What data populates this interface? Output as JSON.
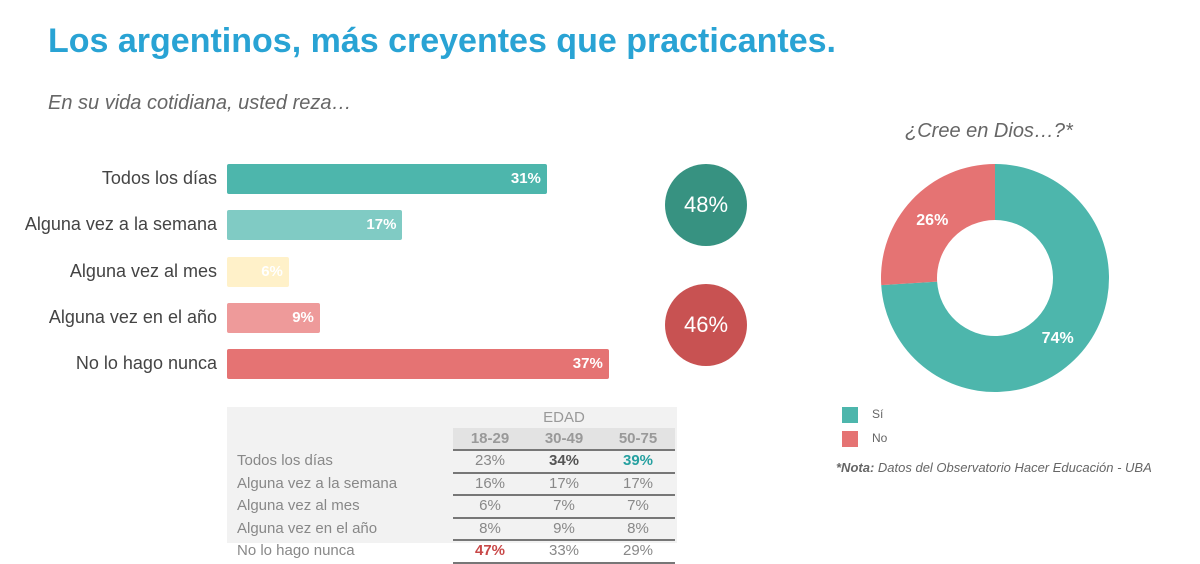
{
  "title": "Los argentinos, más creyentes que practicantes.",
  "subtitle": "En su vida cotidiana, usted reza…",
  "chart_data": [
    {
      "type": "bar",
      "orientation": "horizontal",
      "categories": [
        "Todos los días",
        "Alguna vez a la semana",
        "Alguna vez al mes",
        "Alguna vez en el año",
        "No lo hago nunca"
      ],
      "values": [
        31,
        17,
        6,
        9,
        37
      ],
      "labels": [
        "31%",
        "17%",
        "6%",
        "9%",
        "37%"
      ],
      "colors": [
        "#4db6ac",
        "#80cbc4",
        "#fff1c9",
        "#ee9a9a",
        "#e57373"
      ]
    },
    {
      "type": "pie",
      "title": "¿Cree en Dios…?*",
      "categories": [
        "Sí",
        "No"
      ],
      "values": [
        74,
        26
      ],
      "labels": [
        "74%",
        "26%"
      ],
      "colors": [
        "#4db6ac",
        "#e57373"
      ],
      "legend": "bottom-left"
    },
    {
      "type": "table",
      "title": "EDAD",
      "columns": [
        "18-29",
        "30-49",
        "50-75"
      ],
      "rows": [
        {
          "label": "Todos los días",
          "values": [
            "23%",
            "34%",
            "39%"
          ]
        },
        {
          "label": "Alguna vez a la semana",
          "values": [
            "16%",
            "17%",
            "17%"
          ]
        },
        {
          "label": "Alguna vez al mes",
          "values": [
            "6%",
            "7%",
            "7%"
          ]
        },
        {
          "label": "Alguna vez en el año",
          "values": [
            "8%",
            "9%",
            "8%"
          ]
        },
        {
          "label": "No lo hago nunca",
          "values": [
            "47%",
            "33%",
            "29%"
          ]
        }
      ]
    }
  ],
  "summary": {
    "pray": "48%",
    "not_pray": "46%",
    "pray_color": "#379281",
    "not_pray_color": "#c85252"
  },
  "note_bold": "*Nota:",
  "note": " Datos del Observatorio Hacer Educación - UBA"
}
